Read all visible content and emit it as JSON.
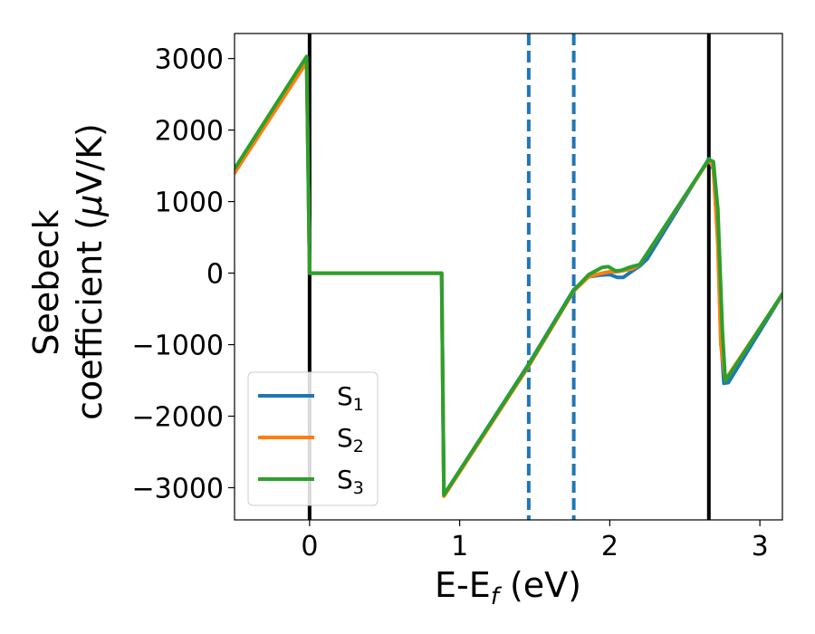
{
  "chart_data": {
    "type": "line",
    "xlabel_main": "E-E",
    "xlabel_sub": "f",
    "xlabel_unit": " (eV)",
    "ylabel_line1": "Seebeck",
    "ylabel_line2": "coefficient  (",
    "ylabel_mu": "μ",
    "ylabel_unit": "V/K)",
    "xlim": [
      -0.5,
      3.15
    ],
    "ylim": [
      -3450,
      3350
    ],
    "x_ticks": [
      0,
      1,
      2,
      3
    ],
    "x_tick_labels": [
      "0",
      "1",
      "2",
      "3"
    ],
    "y_ticks": [
      3000,
      2000,
      1000,
      0,
      -1000,
      -2000,
      -3000
    ],
    "y_tick_labels": [
      "3000",
      "2000",
      "1000",
      "0",
      "−1000",
      "−2000",
      "−3000"
    ],
    "vlines": [
      {
        "x": 0.0,
        "style": "solid",
        "color": "#000000"
      },
      {
        "x": 2.66,
        "style": "solid",
        "color": "#000000"
      },
      {
        "x": 1.46,
        "style": "dashed",
        "color": "#1f77b4"
      },
      {
        "x": 1.76,
        "style": "dashed",
        "color": "#1f77b4"
      }
    ],
    "legend_position": "lower-left",
    "series": [
      {
        "name": "S",
        "sub": "1",
        "color": "#1f77b4",
        "points": [
          [
            -0.5,
            1450
          ],
          [
            -0.02,
            3000
          ],
          [
            0.0,
            0
          ],
          [
            0.88,
            0
          ],
          [
            0.895,
            -3100
          ],
          [
            1.46,
            -1270
          ],
          [
            1.76,
            -230
          ],
          [
            1.86,
            -50
          ],
          [
            1.93,
            -30
          ],
          [
            2.0,
            -20
          ],
          [
            2.05,
            -60
          ],
          [
            2.09,
            -60
          ],
          [
            2.15,
            30
          ],
          [
            2.2,
            100
          ],
          [
            2.25,
            200
          ],
          [
            2.66,
            1600
          ],
          [
            2.69,
            1450
          ],
          [
            2.72,
            500
          ],
          [
            2.74,
            -900
          ],
          [
            2.76,
            -1540
          ],
          [
            2.79,
            -1530
          ],
          [
            3.15,
            -300
          ]
        ]
      },
      {
        "name": "S",
        "sub": "2",
        "color": "#ff7f0e",
        "points": [
          [
            -0.5,
            1400
          ],
          [
            -0.02,
            2950
          ],
          [
            0.0,
            0
          ],
          [
            0.88,
            0
          ],
          [
            0.895,
            -3120
          ],
          [
            1.46,
            -1300
          ],
          [
            1.76,
            -250
          ],
          [
            1.86,
            -50
          ],
          [
            1.95,
            0
          ],
          [
            2.0,
            20
          ],
          [
            2.05,
            20
          ],
          [
            2.1,
            40
          ],
          [
            2.15,
            60
          ],
          [
            2.2,
            120
          ],
          [
            2.66,
            1580
          ],
          [
            2.69,
            1480
          ],
          [
            2.72,
            400
          ],
          [
            2.74,
            -1000
          ],
          [
            2.77,
            -1490
          ],
          [
            3.15,
            -300
          ]
        ]
      },
      {
        "name": "S",
        "sub": "3",
        "color": "#2ca02c",
        "points": [
          [
            -0.5,
            1460
          ],
          [
            -0.02,
            3030
          ],
          [
            0.0,
            0
          ],
          [
            0.88,
            0
          ],
          [
            0.895,
            -3100
          ],
          [
            1.46,
            -1280
          ],
          [
            1.76,
            -240
          ],
          [
            1.86,
            -20
          ],
          [
            1.95,
            80
          ],
          [
            1.99,
            90
          ],
          [
            2.04,
            30
          ],
          [
            2.08,
            40
          ],
          [
            2.13,
            80
          ],
          [
            2.2,
            120
          ],
          [
            2.66,
            1590
          ],
          [
            2.69,
            1560
          ],
          [
            2.72,
            900
          ],
          [
            2.75,
            -800
          ],
          [
            2.77,
            -1510
          ],
          [
            3.15,
            -290
          ]
        ]
      }
    ]
  }
}
